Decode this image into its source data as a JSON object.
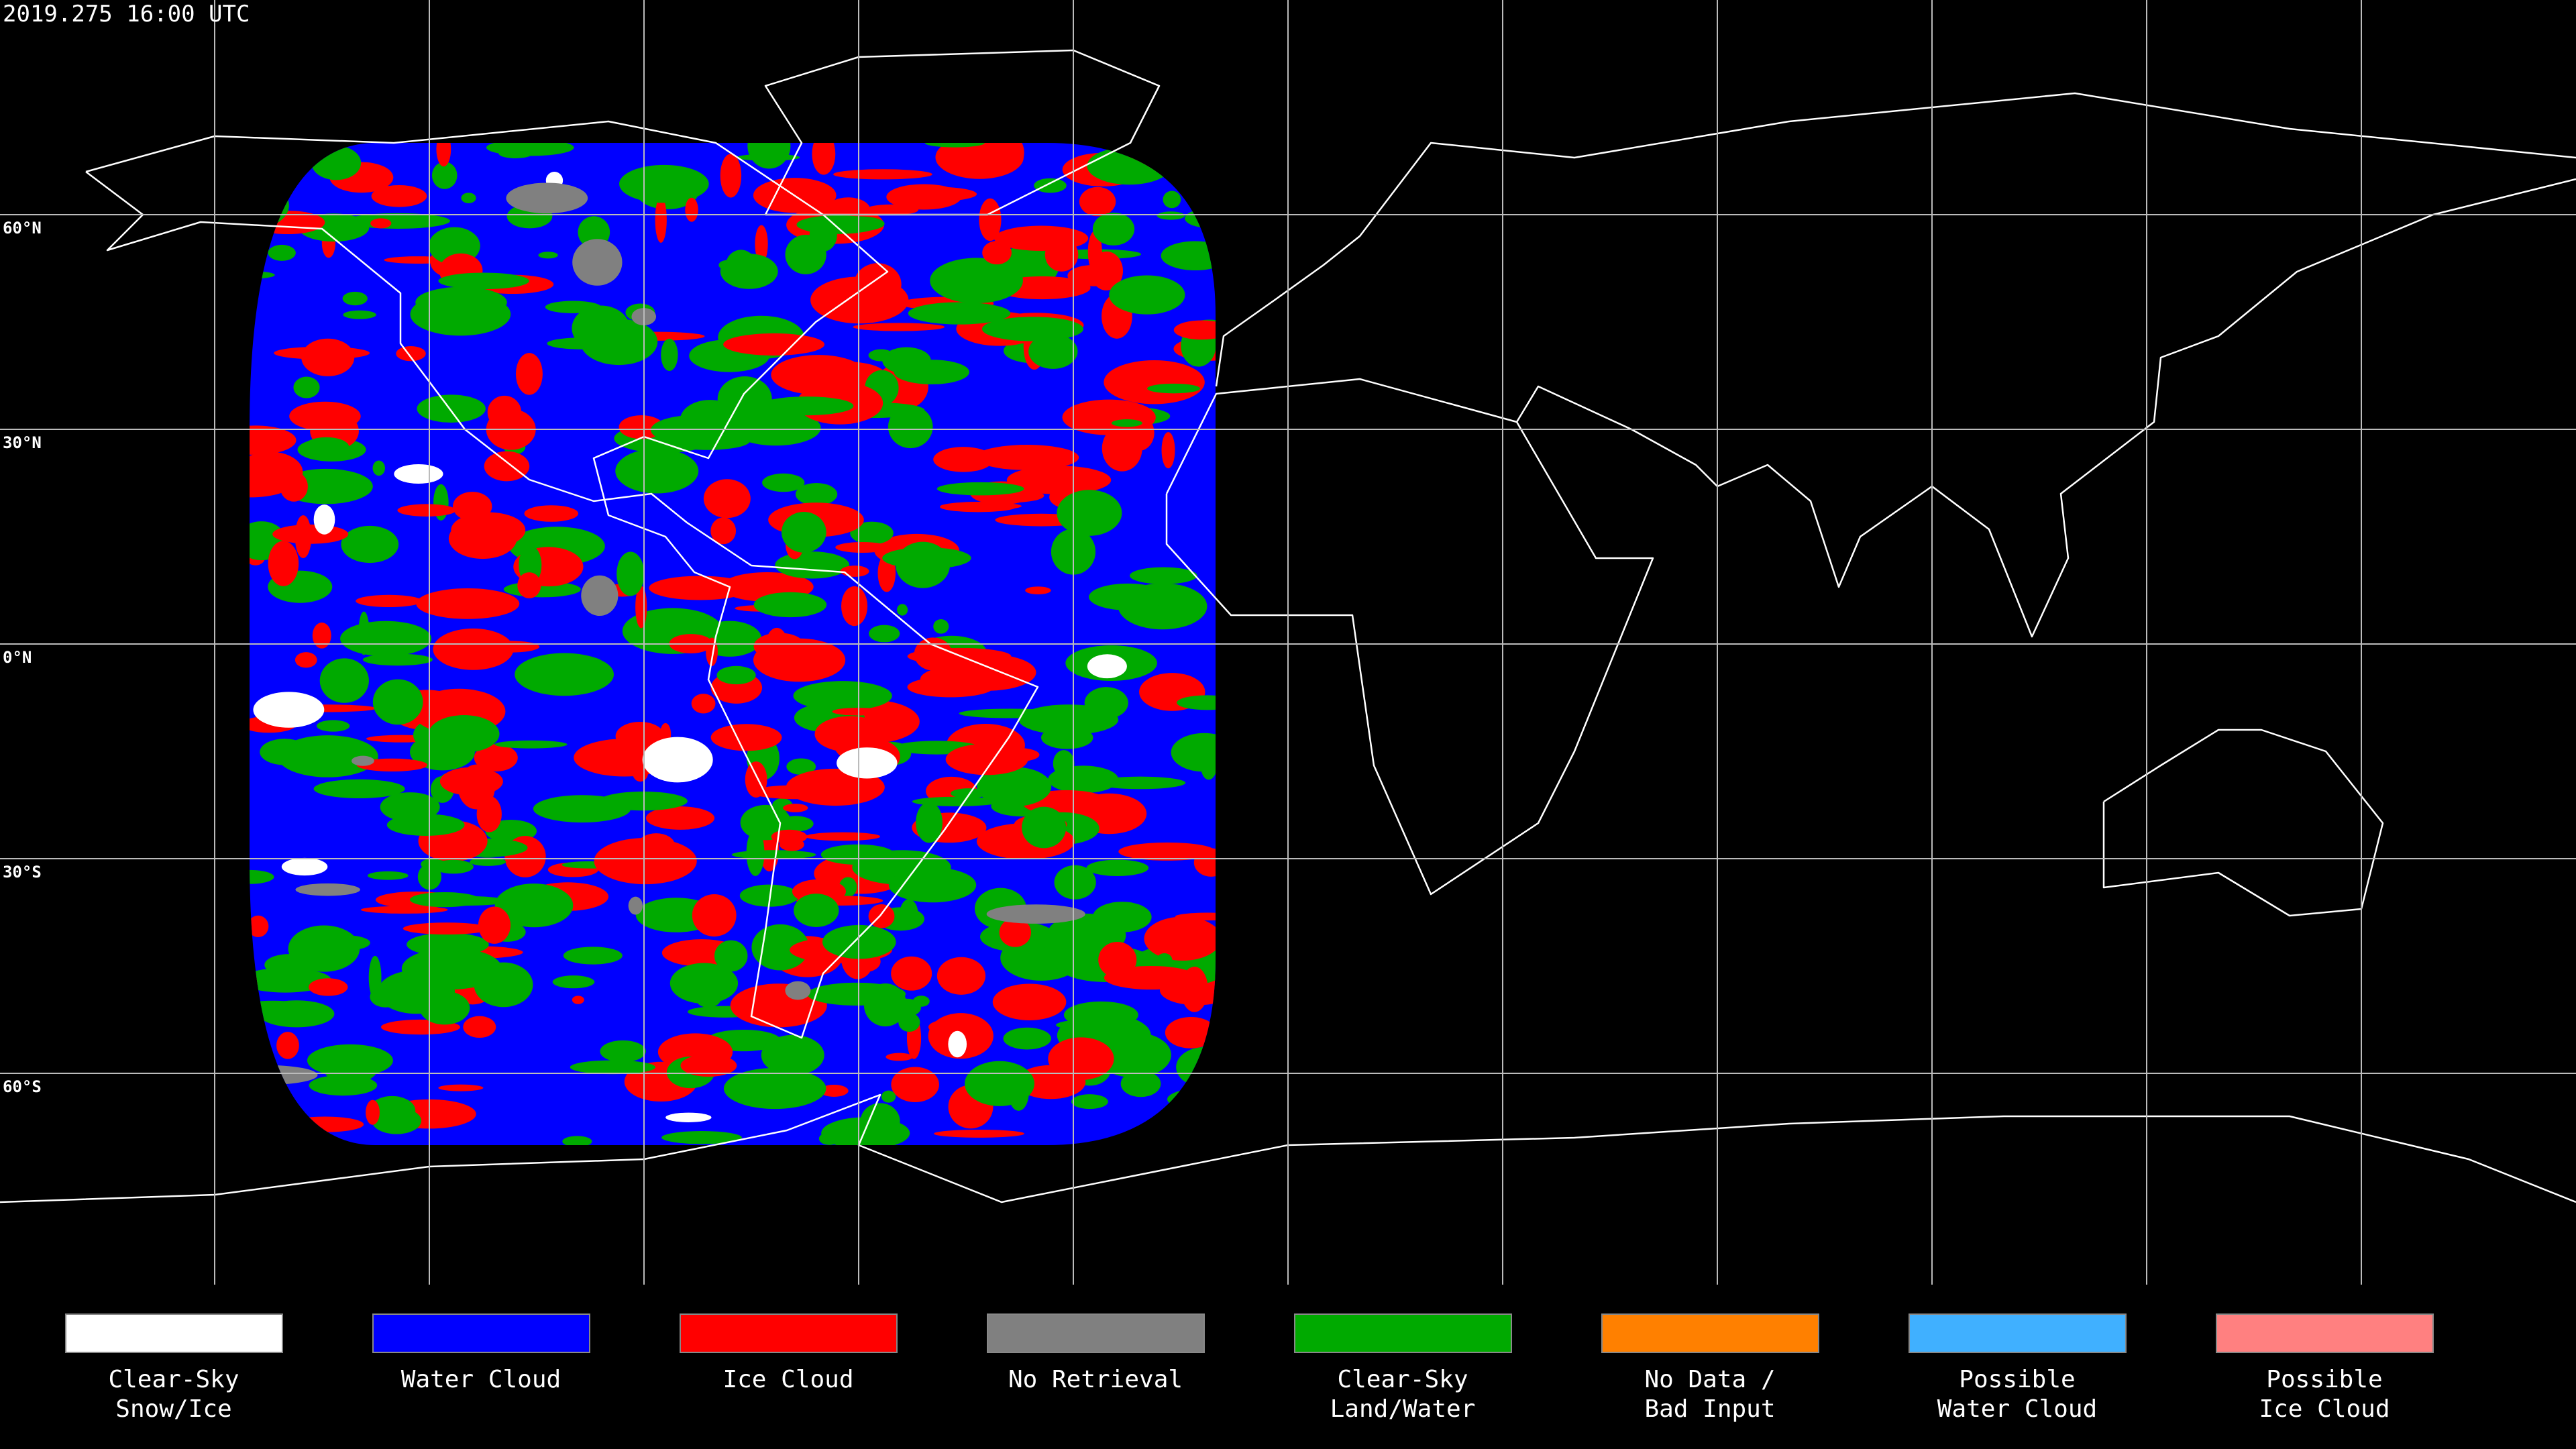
{
  "header": {
    "title": "2019.275 16:00 UTC"
  },
  "map": {
    "latitude_labels": [
      "60°N",
      "30°N",
      "0°N",
      "30°S",
      "60°S"
    ]
  },
  "legend": {
    "items": [
      {
        "lines": [
          "Clear-Sky",
          "Snow/Ice"
        ],
        "color": "#ffffff"
      },
      {
        "lines": [
          "Water Cloud"
        ],
        "color": "#0000ff"
      },
      {
        "lines": [
          "Ice Cloud"
        ],
        "color": "#ff0000"
      },
      {
        "lines": [
          "No Retrieval"
        ],
        "color": "#808080"
      },
      {
        "lines": [
          "Clear-Sky",
          "Land/Water"
        ],
        "color": "#00aa00"
      },
      {
        "lines": [
          "No Data /",
          "Bad Input"
        ],
        "color": "#ff8000"
      },
      {
        "lines": [
          "Possible",
          "Water Cloud"
        ],
        "color": "#40b0ff"
      },
      {
        "lines": [
          "Possible",
          "Ice Cloud"
        ],
        "color": "#ff8080"
      }
    ]
  }
}
